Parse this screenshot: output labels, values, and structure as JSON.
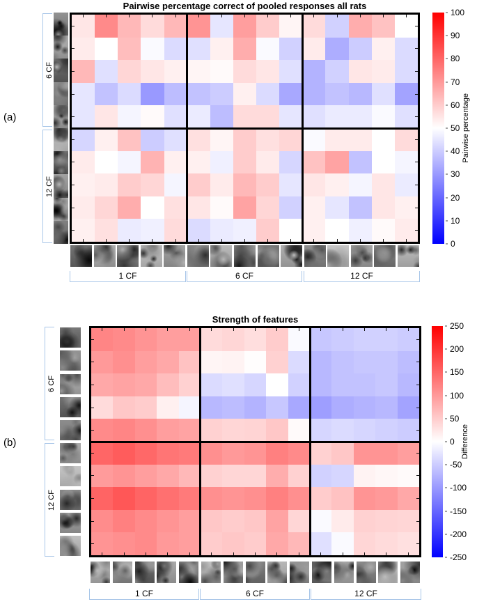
{
  "figure": {
    "panel_labels": [
      "(a)",
      "(b)"
    ],
    "colors": {
      "bracket": "#a8c6e8",
      "heat_positive": "#ff0000",
      "heat_midpoint": "#ffffff",
      "heat_negative": "#0000ff",
      "grid_line": "#000000"
    }
  },
  "chart_data": [
    {
      "type": "heatmap",
      "panel": "a",
      "title": "Pairwise percentage correct of pooled responses all rats",
      "colormap": "blue-white-red",
      "vmin": 0,
      "vmax": 100,
      "vcenter": 50,
      "colorbar_label": "Pairwise percentage",
      "colorbar_ticks": [
        100,
        90,
        80,
        70,
        60,
        50,
        40,
        30,
        20,
        10,
        0
      ],
      "row_group_labels": [
        "6 CF",
        "12 CF"
      ],
      "col_group_labels": [
        "1 CF",
        "6 CF",
        "12 CF"
      ],
      "n_rows": 10,
      "n_cols": 15,
      "rows_per_group": 5,
      "cols_per_group": 5,
      "row_axis_thumbnails": "grayscale face images",
      "col_axis_thumbnails": "grayscale feature images",
      "values": [
        [
          55,
          73,
          64,
          57,
          64,
          71,
          45,
          69,
          60,
          52,
          57,
          41,
          66,
          62,
          50
        ],
        [
          54,
          50,
          63,
          49,
          43,
          44,
          53,
          66,
          49,
          41,
          54,
          34,
          40,
          53,
          43
        ],
        [
          64,
          44,
          58,
          55,
          53,
          52,
          51,
          57,
          55,
          44,
          35,
          41,
          55,
          54,
          43
        ],
        [
          45,
          38,
          43,
          30,
          37,
          38,
          40,
          53,
          43,
          33,
          35,
          38,
          36,
          44,
          32
        ],
        [
          45,
          55,
          48,
          51,
          44,
          46,
          37,
          57,
          57,
          45,
          44,
          46,
          46,
          49,
          44
        ],
        [
          42,
          53,
          62,
          40,
          44,
          56,
          52,
          60,
          56,
          58,
          49,
          54,
          54,
          50,
          57
        ],
        [
          54,
          50,
          48,
          65,
          53,
          53,
          47,
          60,
          54,
          42,
          62,
          68,
          38,
          50,
          48
        ],
        [
          53,
          54,
          60,
          58,
          48,
          60,
          54,
          64,
          60,
          45,
          55,
          53,
          48,
          55,
          46
        ],
        [
          54,
          58,
          66,
          50,
          56,
          55,
          51,
          68,
          58,
          41,
          53,
          45,
          38,
          55,
          53
        ],
        [
          53,
          56,
          46,
          47,
          57,
          43,
          46,
          47,
          60,
          50,
          53,
          50,
          47,
          51,
          54
        ]
      ]
    },
    {
      "type": "heatmap",
      "panel": "b",
      "title": "Strength of features",
      "colormap": "blue-white-red",
      "vmin": -250,
      "vmax": 250,
      "vcenter": 0,
      "colorbar_label": "Difference",
      "colorbar_ticks": [
        250,
        200,
        150,
        100,
        50,
        0,
        -50,
        -100,
        -150,
        -200,
        -250
      ],
      "row_group_labels": [
        "6 CF",
        "12 CF"
      ],
      "col_group_labels": [
        "1 CF",
        "6 CF",
        "12 CF"
      ],
      "n_rows": 10,
      "n_cols": 15,
      "rows_per_group": 5,
      "cols_per_group": 5,
      "row_axis_thumbnails": "grayscale face images",
      "col_axis_thumbnails": "grayscale feature images",
      "values": [
        [
          120,
          115,
          105,
          95,
          95,
          35,
          40,
          32,
          50,
          -5,
          -55,
          -50,
          -45,
          -45,
          -50
        ],
        [
          100,
          110,
          95,
          85,
          60,
          10,
          12,
          2,
          45,
          -35,
          -70,
          -60,
          -55,
          -55,
          -65
        ],
        [
          85,
          90,
          85,
          65,
          45,
          -35,
          -30,
          -40,
          0,
          -45,
          -70,
          -60,
          -60,
          -55,
          -70
        ],
        [
          35,
          55,
          50,
          15,
          -10,
          -70,
          -65,
          -75,
          -55,
          -85,
          -95,
          -80,
          -75,
          -70,
          -90
        ],
        [
          115,
          120,
          110,
          95,
          90,
          45,
          40,
          42,
          55,
          5,
          -40,
          -35,
          -40,
          -45,
          -50
        ],
        [
          150,
          160,
          148,
          135,
          130,
          110,
          100,
          105,
          125,
          115,
          45,
          55,
          105,
          105,
          95
        ],
        [
          98,
          105,
          95,
          85,
          70,
          45,
          40,
          40,
          80,
          45,
          -45,
          -40,
          12,
          8,
          5
        ],
        [
          152,
          165,
          152,
          140,
          130,
          110,
          105,
          110,
          125,
          110,
          50,
          60,
          105,
          100,
          85
        ],
        [
          113,
          125,
          115,
          105,
          95,
          55,
          50,
          55,
          90,
          40,
          -5,
          20,
          45,
          42,
          40
        ],
        [
          105,
          110,
          115,
          100,
          95,
          50,
          55,
          50,
          85,
          70,
          -30,
          -5,
          40,
          35,
          30
        ]
      ]
    }
  ]
}
